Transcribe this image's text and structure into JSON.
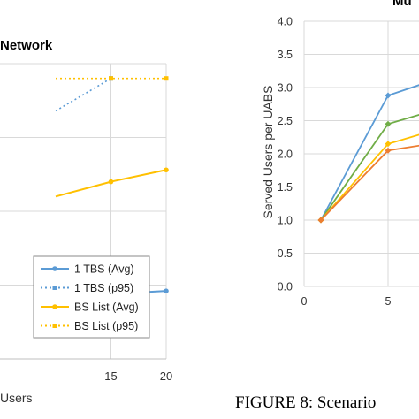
{
  "chart_data": [
    {
      "type": "line",
      "title": "Network",
      "xlabel": "Users",
      "ylabel": "",
      "x": [
        15,
        20
      ],
      "xlim": [
        10,
        20
      ],
      "xticks": [
        15,
        20
      ],
      "ylim": [
        0,
        1
      ],
      "grid": true,
      "legend_position": "bottom-right",
      "series": [
        {
          "name": "1 TBS (Avg)",
          "color": "#5b9bd5",
          "style": "solid",
          "points": [
            [
              10,
              0.21
            ],
            [
              15,
              0.22
            ],
            [
              20,
              0.23
            ]
          ]
        },
        {
          "name": "1 TBS (p95)",
          "color": "#5b9bd5",
          "style": "dotted",
          "points": [
            [
              10,
              0.84
            ],
            [
              15,
              0.95
            ]
          ]
        },
        {
          "name": "BS List (Avg)",
          "color": "#ffc000",
          "style": "solid",
          "points": [
            [
              10,
              0.55
            ],
            [
              15,
              0.6
            ],
            [
              20,
              0.64
            ]
          ]
        },
        {
          "name": "BS List (p95)",
          "color": "#ffc000",
          "style": "dotted",
          "points": [
            [
              10,
              0.95
            ],
            [
              15,
              0.95
            ],
            [
              20,
              0.95
            ]
          ]
        }
      ]
    },
    {
      "type": "line",
      "title": "Mu",
      "xlabel": "",
      "ylabel": "Served Users per UABS",
      "xlim": [
        0,
        8
      ],
      "xticks": [
        0,
        5
      ],
      "ylim": [
        0,
        4
      ],
      "yticks": [
        "0.0",
        "0.5",
        "1.0",
        "1.5",
        "2.0",
        "2.5",
        "3.0",
        "3.5",
        "4.0"
      ],
      "grid": true,
      "series": [
        {
          "color": "#5b9bd5",
          "points": [
            [
              1,
              1.0
            ],
            [
              5,
              2.88
            ],
            [
              7,
              3.05
            ]
          ]
        },
        {
          "color": "#70ad47",
          "points": [
            [
              1,
              1.0
            ],
            [
              5,
              2.45
            ],
            [
              7,
              2.6
            ]
          ]
        },
        {
          "color": "#ffc000",
          "points": [
            [
              1,
              1.0
            ],
            [
              5,
              2.15
            ],
            [
              7,
              2.3
            ]
          ]
        },
        {
          "color": "#ed7d31",
          "points": [
            [
              1,
              1.0
            ],
            [
              5,
              2.05
            ],
            [
              7,
              2.13
            ]
          ]
        }
      ]
    }
  ],
  "caption": "FIGURE 8: Scenario"
}
